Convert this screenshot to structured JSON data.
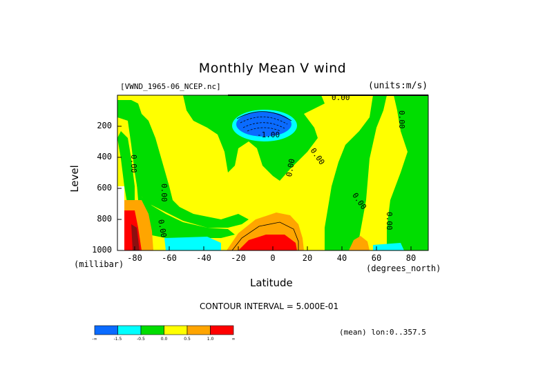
{
  "chart_data": {
    "type": "heatmap",
    "title": "Monthly Mean V wind",
    "dataset": "[VWND_1965-06_NCEP.nc]",
    "units": "(units:m/s)",
    "xlabel": "Latitude",
    "x_unit": "(degrees_north)",
    "ylabel": "Level",
    "y_unit": "(millibar)",
    "xlim": [
      -90,
      90
    ],
    "ylim": [
      1000,
      0
    ],
    "x_ticks": [
      "-80",
      "-60",
      "-40",
      "-20",
      "0",
      "20",
      "40",
      "60",
      "80"
    ],
    "y_ticks": [
      "200",
      "400",
      "600",
      "800",
      "1000"
    ],
    "contour_interval": "CONTOUR INTERVAL = 5.000E-01",
    "contour_labels": [
      "0.00",
      "-1.00"
    ],
    "mean_label": "(mean) lon:0..357.5",
    "colorbar": {
      "colors": [
        "#0a6bff",
        "#00ffff",
        "#00dd00",
        "#ffff00",
        "#ffa500",
        "#ff0000"
      ],
      "labels": [
        "-∞",
        "-1.5",
        "-0.5",
        "0.0",
        "0.5",
        "1.0",
        "∞"
      ]
    }
  }
}
